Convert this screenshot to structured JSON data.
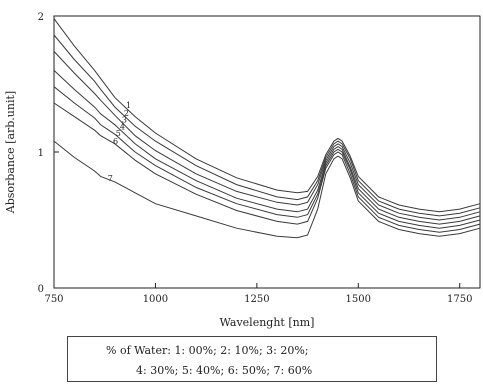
{
  "chart_data": {
    "type": "line",
    "title": "",
    "xlabel": "Wavelenght [nm]",
    "ylabel": "Absorbance [arb.unit]",
    "xlim": [
      750,
      1800
    ],
    "ylim": [
      0,
      2
    ],
    "x_ticks": [
      "750",
      "1000",
      "1250",
      "1500",
      "1750"
    ],
    "y_ticks": [
      "0",
      "1",
      "2"
    ],
    "x": [
      750,
      800,
      850,
      865,
      900,
      950,
      1000,
      1100,
      1200,
      1300,
      1350,
      1375,
      1400,
      1420,
      1440,
      1450,
      1460,
      1480,
      1500,
      1550,
      1600,
      1650,
      1700,
      1750,
      1800
    ],
    "series": [
      {
        "name": "1",
        "values": [
          1.98,
          1.78,
          1.6,
          1.54,
          1.4,
          1.26,
          1.14,
          0.95,
          0.81,
          0.72,
          0.7,
          0.71,
          0.82,
          0.98,
          1.08,
          1.1,
          1.08,
          0.97,
          0.82,
          0.67,
          0.61,
          0.58,
          0.56,
          0.58,
          0.62
        ]
      },
      {
        "name": "2",
        "values": [
          1.86,
          1.68,
          1.52,
          1.46,
          1.33,
          1.19,
          1.08,
          0.9,
          0.76,
          0.67,
          0.65,
          0.67,
          0.79,
          0.96,
          1.06,
          1.08,
          1.06,
          0.95,
          0.79,
          0.64,
          0.58,
          0.55,
          0.53,
          0.55,
          0.59
        ]
      },
      {
        "name": "3",
        "values": [
          1.74,
          1.58,
          1.43,
          1.38,
          1.27,
          1.12,
          1.01,
          0.84,
          0.71,
          0.63,
          0.61,
          0.63,
          0.76,
          0.94,
          1.04,
          1.06,
          1.04,
          0.92,
          0.76,
          0.61,
          0.55,
          0.52,
          0.5,
          0.52,
          0.56
        ]
      },
      {
        "name": "4",
        "values": [
          1.6,
          1.46,
          1.33,
          1.28,
          1.2,
          1.06,
          0.95,
          0.79,
          0.66,
          0.58,
          0.56,
          0.58,
          0.72,
          0.92,
          1.02,
          1.04,
          1.02,
          0.89,
          0.73,
          0.58,
          0.52,
          0.49,
          0.47,
          0.49,
          0.53
        ]
      },
      {
        "name": "5",
        "values": [
          1.48,
          1.36,
          1.25,
          1.2,
          1.13,
          1.0,
          0.9,
          0.74,
          0.62,
          0.54,
          0.52,
          0.54,
          0.69,
          0.9,
          1.0,
          1.02,
          1.0,
          0.87,
          0.7,
          0.55,
          0.49,
          0.46,
          0.44,
          0.46,
          0.5
        ]
      },
      {
        "name": "6",
        "values": [
          1.36,
          1.26,
          1.16,
          1.12,
          1.06,
          0.94,
          0.84,
          0.69,
          0.57,
          0.49,
          0.47,
          0.49,
          0.66,
          0.88,
          0.98,
          1.0,
          0.98,
          0.84,
          0.67,
          0.52,
          0.46,
          0.43,
          0.41,
          0.43,
          0.47
        ]
      },
      {
        "name": "7",
        "values": [
          1.08,
          0.96,
          0.86,
          0.82,
          0.78,
          0.7,
          0.62,
          0.53,
          0.44,
          0.38,
          0.37,
          0.39,
          0.58,
          0.84,
          0.95,
          0.97,
          0.95,
          0.81,
          0.64,
          0.49,
          0.43,
          0.4,
          0.38,
          0.4,
          0.44
        ]
      }
    ],
    "series_labels": [
      "1",
      "2",
      "3",
      "4",
      "5",
      "6",
      "7"
    ],
    "series_label_x": [
      920,
      915,
      910,
      905,
      895,
      888,
      875
    ],
    "legend_position": "bottom",
    "grid": false,
    "legend": {
      "line1": "% of Water:  1: 00%; 2: 10%; 3: 20%;",
      "line2": "4: 30%; 5: 40%; 6: 50%; 7: 60%"
    },
    "line_color": "#3a3a3a"
  }
}
